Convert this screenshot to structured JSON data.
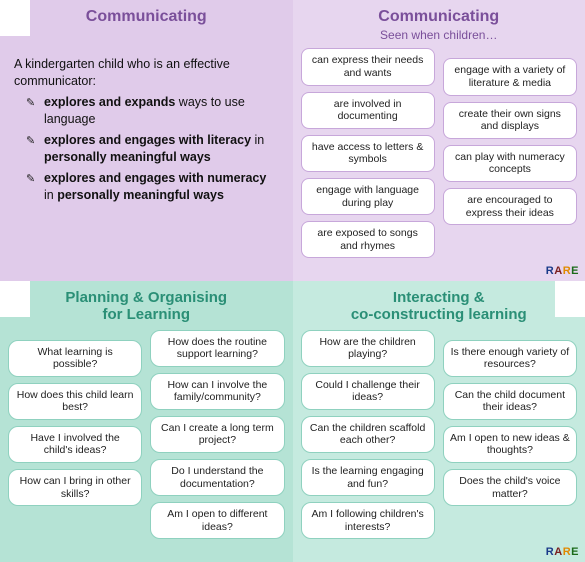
{
  "colors": {
    "top_left_bg": "#e0cbea",
    "top_right_bg": "#e7d6ef",
    "bottom_left_bg": "#b5e3d5",
    "bottom_right_bg": "#c5eadf",
    "purple_heading": "#7a4f9a",
    "teal_heading": "#2a8f76",
    "pill_border_purple": "#c7a7da",
    "pill_border_teal": "#8fd1bf"
  },
  "top_left": {
    "title": "Communicating",
    "intro_lead": "A kindergarten child who is an effective communicator:",
    "bullets": [
      {
        "bold1": "explores and expands",
        "rest": " ways to use language"
      },
      {
        "bold1": "explores and engages with literacy",
        "rest": " in ",
        "bold2": "personally meaningful ways"
      },
      {
        "bold1": "explores and engages with numeracy",
        "rest": " in ",
        "bold2": "personally meaningful ways"
      }
    ]
  },
  "top_right": {
    "title": "Communicating",
    "subtitle": "Seen when children…",
    "left_col": [
      "can express their needs and wants",
      "are involved in documenting",
      "have access to letters & symbols",
      "engage with language during play",
      "are exposed to songs and rhymes"
    ],
    "right_col": [
      "engage with a variety of literature & media",
      "create their own signs and displays",
      "can play with numeracy concepts",
      "are encouraged to express their ideas"
    ]
  },
  "bottom_left": {
    "title_l1": "Planning & Organising",
    "title_l2": "for Learning",
    "left_col": [
      "What learning is possible?",
      "How does this child learn best?",
      "Have I involved the child's ideas?",
      "How can I bring in other skills?"
    ],
    "right_col": [
      "How does the routine support learning?",
      "How can I involve the family/community?",
      "Can I create a long term project?",
      "Do I understand the documentation?",
      "Am I open to different ideas?"
    ]
  },
  "bottom_right": {
    "title_l1": "Interacting &",
    "title_l2": "co-constructing learning",
    "left_col": [
      "How are the children playing?",
      "Could I challenge their ideas?",
      "Can the children scaffold each other?",
      "Is the learning engaging and fun?",
      "Am I following children's interests?"
    ],
    "right_col": [
      "Is there enough variety of resources?",
      "Can the child document their ideas?",
      "Am I open to new ideas & thoughts?",
      "Does the child's voice matter?"
    ]
  },
  "logo": "RARE"
}
